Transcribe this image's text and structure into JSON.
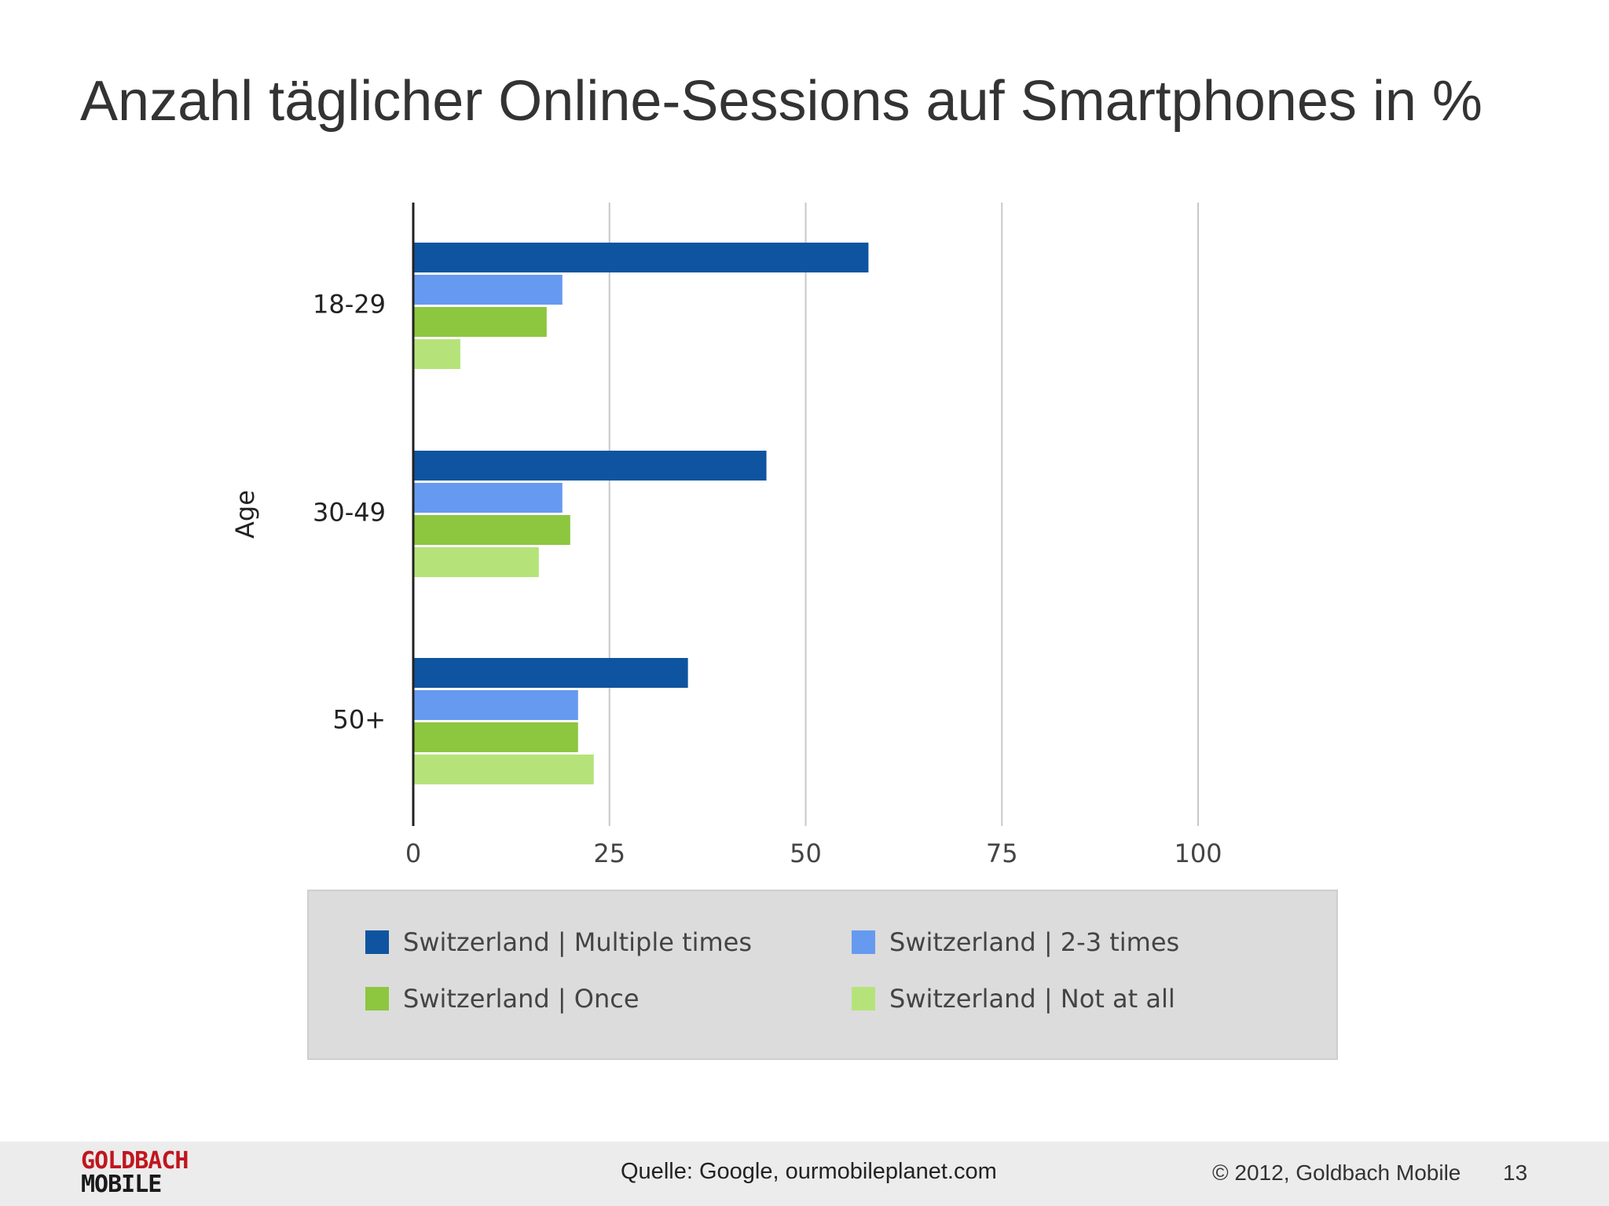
{
  "slide": {
    "title": "Anzahl täglicher Online-Sessions auf Smartphones in %"
  },
  "chart_data": {
    "type": "bar",
    "orientation": "horizontal",
    "ylabel": "Age",
    "xlabel": "",
    "categories": [
      "18-29",
      "30-49",
      "50+"
    ],
    "series": [
      {
        "name": "Switzerland | Multiple times",
        "color": "#0f54a0",
        "values": [
          58,
          45,
          35
        ]
      },
      {
        "name": "Switzerland | 2-3 times",
        "color": "#6699f0",
        "values": [
          19,
          19,
          21
        ]
      },
      {
        "name": "Switzerland | Once",
        "color": "#8dc63f",
        "values": [
          17,
          20,
          21
        ]
      },
      {
        "name": "Switzerland | Not at all",
        "color": "#b5e37a",
        "values": [
          6,
          16,
          23
        ]
      }
    ],
    "xlim": [
      0,
      100
    ],
    "xticks": [
      "0",
      "25",
      "50",
      "75",
      "100"
    ],
    "grid": true,
    "legend_position": "bottom"
  },
  "footer": {
    "logo_line1": "GOLDBACH",
    "logo_line2": "MOBILE",
    "source": "Quelle: Google, ourmobileplanet.com",
    "copyright": "© 2012, Goldbach Mobile",
    "page_number": "13"
  }
}
